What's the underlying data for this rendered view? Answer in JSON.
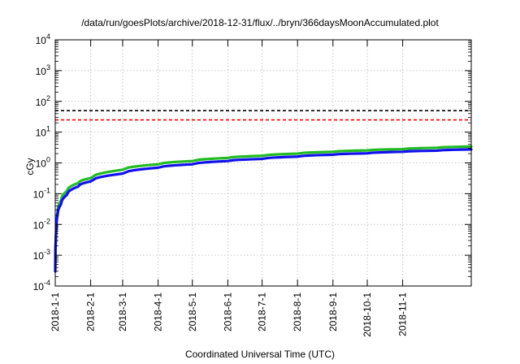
{
  "chart_data": {
    "type": "line",
    "title": "/data/run/goesPlots/archive/2018-12-31/flux/../bryn/366daysMoonAccumulated.plot",
    "xlabel": "Coordinated Universal Time (UTC)",
    "ylabel": "cGy",
    "x_scale": "date",
    "xlim": [
      "2018-01-01",
      "2018-12-31"
    ],
    "ylim": [
      0.0001,
      10000
    ],
    "y_scale": "log",
    "x_ticks": [
      "2018-1-1",
      "2018-2-1",
      "2018-3-1",
      "2018-4-1",
      "2018-5-1",
      "2018-6-1",
      "2018-7-1",
      "2018-8-1",
      "2018-9-1",
      "2018-10-1",
      "2018-11-1"
    ],
    "y_ticks": [
      {
        "base": "10",
        "exp": "-4",
        "value": 0.0001
      },
      {
        "base": "10",
        "exp": "-3",
        "value": 0.001
      },
      {
        "base": "10",
        "exp": "-2",
        "value": 0.01
      },
      {
        "base": "10",
        "exp": "-1",
        "value": 0.1
      },
      {
        "base": "10",
        "exp": "0",
        "value": 1
      },
      {
        "base": "10",
        "exp": "1",
        "value": 10
      },
      {
        "base": "10",
        "exp": "2",
        "value": 100
      },
      {
        "base": "10",
        "exp": "3",
        "value": 1000
      },
      {
        "base": "10",
        "exp": "4",
        "value": 10000
      }
    ],
    "grid": true,
    "reference_lines": [
      {
        "value": 50,
        "color": "#000000",
        "style": "dashed"
      },
      {
        "value": 25,
        "color": "#ff0000",
        "style": "dashed"
      }
    ],
    "series": [
      {
        "color": "#22bb22",
        "x": [
          "2018-01-01",
          "2018-01-02",
          "2018-01-03",
          "2018-01-06",
          "2018-01-11",
          "2018-01-21",
          "2018-02-01",
          "2018-03-01",
          "2018-04-01",
          "2018-05-01",
          "2018-06-01",
          "2018-07-01",
          "2018-08-01",
          "2018-09-01",
          "2018-10-01",
          "2018-11-01",
          "2018-12-01",
          "2018-12-31"
        ],
        "y": [
          0.0004,
          0.01,
          0.025,
          0.06,
          0.12,
          0.22,
          0.32,
          0.6,
          0.9,
          1.15,
          1.45,
          1.7,
          2.0,
          2.3,
          2.55,
          2.8,
          3.1,
          3.4
        ]
      },
      {
        "color": "#1111ee",
        "x": [
          "2018-01-01",
          "2018-01-02",
          "2018-01-03",
          "2018-01-06",
          "2018-01-11",
          "2018-01-21",
          "2018-02-01",
          "2018-03-01",
          "2018-04-01",
          "2018-05-01",
          "2018-06-01",
          "2018-07-01",
          "2018-08-01",
          "2018-09-01",
          "2018-10-01",
          "2018-11-01",
          "2018-12-01",
          "2018-12-31"
        ],
        "y": [
          0.0003,
          0.008,
          0.02,
          0.045,
          0.09,
          0.17,
          0.25,
          0.45,
          0.7,
          0.9,
          1.15,
          1.35,
          1.6,
          1.85,
          2.05,
          2.3,
          2.5,
          2.75
        ]
      }
    ]
  }
}
